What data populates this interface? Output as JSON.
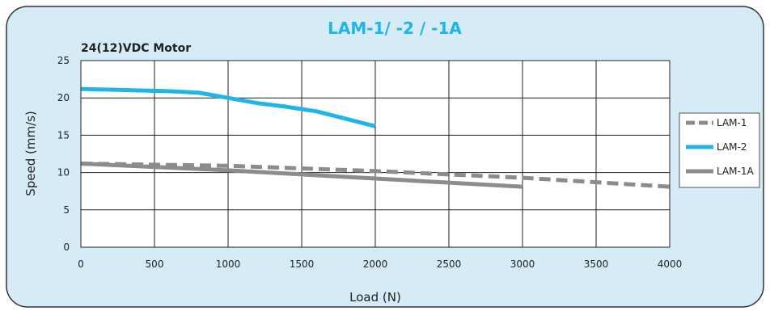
{
  "chart_data": {
    "type": "line",
    "title": "LAM-1/ -2 / -1A",
    "subtitle": "24(12)VDC Motor",
    "xlabel": "Load (N)",
    "ylabel": "Speed (mm/s)",
    "xlim": [
      0,
      4000
    ],
    "ylim": [
      0,
      25
    ],
    "xticks": [
      0,
      500,
      1000,
      1500,
      2000,
      2500,
      3000,
      3500,
      4000
    ],
    "yticks": [
      0,
      5,
      10,
      15,
      20,
      25
    ],
    "grid": true,
    "legend_position": "right",
    "series": [
      {
        "name": "LAM-1",
        "color": "#8c8c8c",
        "dash": "dashed",
        "x": [
          0,
          1000,
          2000,
          3000,
          4000
        ],
        "y": [
          11.2,
          10.9,
          10.2,
          9.3,
          8.1
        ]
      },
      {
        "name": "LAM-2",
        "color": "#1fb5e8",
        "dash": "solid",
        "x": [
          0,
          200,
          400,
          600,
          800,
          1000,
          1200,
          1400,
          1600,
          1800,
          2000
        ],
        "y": [
          21.2,
          21.1,
          21.0,
          20.9,
          20.7,
          20.0,
          19.3,
          18.8,
          18.2,
          17.2,
          16.2
        ]
      },
      {
        "name": "LAM-1A",
        "color": "#8c8c8c",
        "dash": "solid",
        "x": [
          0,
          1000,
          2000,
          3000
        ],
        "y": [
          11.2,
          10.3,
          9.2,
          8.1
        ]
      }
    ]
  }
}
